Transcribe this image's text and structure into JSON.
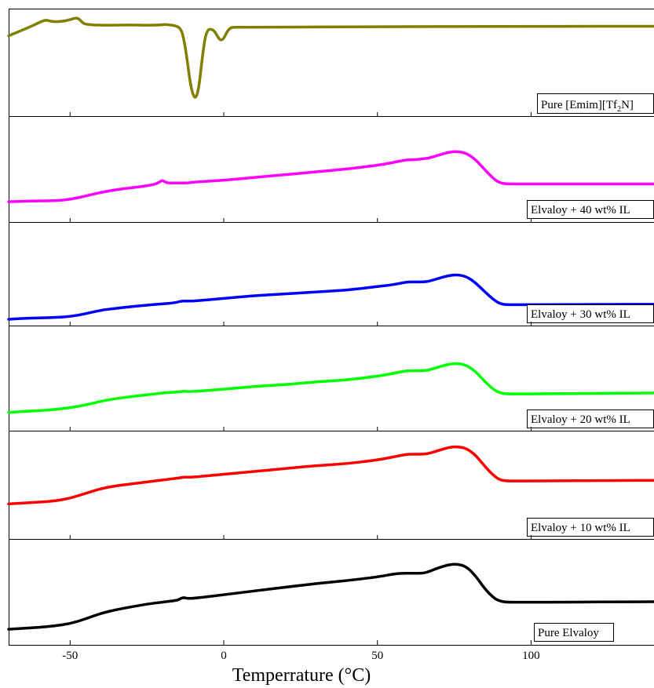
{
  "chart_data": {
    "type": "line",
    "xlabel": "Temperrature (°C)",
    "ylabel": "",
    "xlim": [
      -70,
      140
    ],
    "xticks": [
      "-50",
      "0",
      "50",
      "100"
    ],
    "xtick_values": [
      -50,
      0,
      50,
      100
    ],
    "grid": false,
    "layout": "stacked panels, one series per panel",
    "series": [
      {
        "name": "Pure [Emim][Tf",
        "name_sub": "2",
        "name_suffix": "N]",
        "color": "#808000",
        "ylim": [
          0,
          1
        ],
        "x": [
          -70,
          -64,
          -60,
          -58,
          -56,
          -54,
          -52,
          -50,
          -48,
          -47,
          -46,
          -45,
          -40,
          -30,
          -25,
          -20,
          -19,
          -18,
          -16,
          -14,
          -13,
          -12,
          -11,
          -10,
          -9,
          -8,
          -7,
          -6,
          -5,
          -4,
          -3,
          -2,
          -1,
          0,
          1,
          2,
          3,
          5,
          10,
          20,
          40,
          60,
          80,
          100,
          120,
          140
        ],
        "y": [
          0.78,
          0.86,
          0.92,
          0.95,
          0.93,
          0.93,
          0.935,
          0.95,
          0.97,
          0.955,
          0.92,
          0.9,
          0.89,
          0.895,
          0.89,
          0.895,
          0.9,
          0.895,
          0.89,
          0.86,
          0.75,
          0.55,
          0.3,
          0.15,
          0.12,
          0.25,
          0.55,
          0.78,
          0.85,
          0.85,
          0.83,
          0.77,
          0.73,
          0.75,
          0.82,
          0.86,
          0.87,
          0.87,
          0.87,
          0.872,
          0.874,
          0.876,
          0.878,
          0.879,
          0.88,
          0.88
        ]
      },
      {
        "name": "Elvaloy + 40 wt% IL",
        "color": "#ff00ff",
        "ylim": [
          0,
          1
        ],
        "x": [
          -70,
          -65,
          -60,
          -55,
          -50,
          -45,
          -40,
          -35,
          -30,
          -25,
          -22,
          -21,
          -20,
          -19,
          -18,
          -15,
          -12,
          -10,
          0,
          10,
          20,
          30,
          40,
          50,
          55,
          58,
          60,
          62,
          65,
          67,
          70,
          73,
          76,
          79,
          82,
          85,
          88,
          90,
          92,
          95,
          100,
          110,
          120,
          130,
          140
        ],
        "y": [
          0.15,
          0.155,
          0.16,
          0.16,
          0.175,
          0.21,
          0.25,
          0.28,
          0.3,
          0.32,
          0.34,
          0.36,
          0.38,
          0.36,
          0.35,
          0.35,
          0.35,
          0.36,
          0.38,
          0.41,
          0.44,
          0.47,
          0.5,
          0.54,
          0.57,
          0.59,
          0.6,
          0.6,
          0.61,
          0.62,
          0.65,
          0.68,
          0.69,
          0.67,
          0.6,
          0.49,
          0.39,
          0.35,
          0.34,
          0.34,
          0.34,
          0.34,
          0.34,
          0.34,
          0.34
        ]
      },
      {
        "name": "Elvaloy + 30 wt% IL",
        "color": "#0000ff",
        "ylim": [
          0,
          1
        ],
        "x": [
          -70,
          -65,
          -60,
          -55,
          -50,
          -45,
          -40,
          -35,
          -30,
          -25,
          -20,
          -16,
          -14,
          -12,
          -10,
          0,
          10,
          20,
          30,
          40,
          50,
          55,
          58,
          60,
          62,
          65,
          67,
          70,
          73,
          76,
          79,
          82,
          85,
          88,
          90,
          92,
          95,
          100,
          110,
          120,
          130,
          140
        ],
        "y": [
          0.0,
          0.01,
          0.015,
          0.02,
          0.03,
          0.06,
          0.1,
          0.12,
          0.14,
          0.155,
          0.17,
          0.18,
          0.2,
          0.2,
          0.2,
          0.23,
          0.26,
          0.28,
          0.3,
          0.32,
          0.36,
          0.38,
          0.4,
          0.41,
          0.41,
          0.41,
          0.42,
          0.45,
          0.48,
          0.49,
          0.47,
          0.4,
          0.3,
          0.21,
          0.17,
          0.16,
          0.16,
          0.16,
          0.162,
          0.163,
          0.164,
          0.165
        ]
      },
      {
        "name": "Elvaloy + 20 wt% IL",
        "color": "#00ff00",
        "ylim": [
          0,
          1
        ],
        "x": [
          -70,
          -65,
          -60,
          -55,
          -50,
          -45,
          -40,
          -35,
          -30,
          -25,
          -20,
          -15,
          -13,
          -12,
          -10,
          0,
          10,
          20,
          30,
          40,
          50,
          55,
          58,
          60,
          62,
          65,
          67,
          70,
          73,
          76,
          79,
          82,
          85,
          88,
          90,
          92,
          95,
          100,
          110,
          120,
          130,
          140
        ],
        "y": [
          0.13,
          0.14,
          0.15,
          0.16,
          0.18,
          0.21,
          0.25,
          0.28,
          0.3,
          0.32,
          0.34,
          0.35,
          0.36,
          0.355,
          0.355,
          0.38,
          0.41,
          0.43,
          0.46,
          0.48,
          0.52,
          0.55,
          0.57,
          0.58,
          0.58,
          0.58,
          0.59,
          0.62,
          0.65,
          0.66,
          0.64,
          0.57,
          0.46,
          0.37,
          0.34,
          0.33,
          0.33,
          0.33,
          0.333,
          0.335,
          0.337,
          0.34
        ]
      },
      {
        "name": "Elvaloy + 10 wt% IL",
        "color": "#ff0000",
        "ylim": [
          0,
          1
        ],
        "x": [
          -70,
          -65,
          -60,
          -55,
          -50,
          -45,
          -40,
          -35,
          -30,
          -25,
          -20,
          -15,
          -13,
          -12,
          -10,
          0,
          10,
          20,
          30,
          40,
          50,
          55,
          58,
          60,
          62,
          65,
          67,
          70,
          73,
          76,
          79,
          82,
          85,
          88,
          90,
          92,
          95,
          100,
          110,
          120,
          130,
          140
        ],
        "y": [
          0.3,
          0.31,
          0.32,
          0.33,
          0.36,
          0.41,
          0.46,
          0.49,
          0.51,
          0.53,
          0.55,
          0.57,
          0.58,
          0.58,
          0.58,
          0.61,
          0.64,
          0.67,
          0.7,
          0.72,
          0.76,
          0.79,
          0.81,
          0.82,
          0.82,
          0.82,
          0.83,
          0.86,
          0.89,
          0.9,
          0.88,
          0.81,
          0.69,
          0.59,
          0.55,
          0.54,
          0.54,
          0.54,
          0.542,
          0.544,
          0.545,
          0.546
        ]
      },
      {
        "name": "Pure Elvaloy",
        "color": "#000000",
        "ylim": [
          0,
          1
        ],
        "x": [
          -70,
          -65,
          -60,
          -55,
          -50,
          -45,
          -40,
          -35,
          -30,
          -25,
          -20,
          -15,
          -14,
          -13,
          -12,
          -10,
          0,
          10,
          20,
          30,
          40,
          50,
          55,
          58,
          60,
          62,
          65,
          67,
          70,
          73,
          76,
          79,
          82,
          85,
          88,
          90,
          92,
          95,
          100,
          110,
          120,
          130,
          140
        ],
        "y": [
          0.1,
          0.11,
          0.12,
          0.135,
          0.16,
          0.21,
          0.27,
          0.31,
          0.34,
          0.37,
          0.39,
          0.41,
          0.43,
          0.44,
          0.43,
          0.43,
          0.47,
          0.51,
          0.55,
          0.59,
          0.62,
          0.66,
          0.69,
          0.7,
          0.7,
          0.7,
          0.7,
          0.72,
          0.76,
          0.79,
          0.8,
          0.77,
          0.67,
          0.53,
          0.43,
          0.4,
          0.39,
          0.39,
          0.39,
          0.39,
          0.392,
          0.394,
          0.395
        ]
      }
    ]
  }
}
